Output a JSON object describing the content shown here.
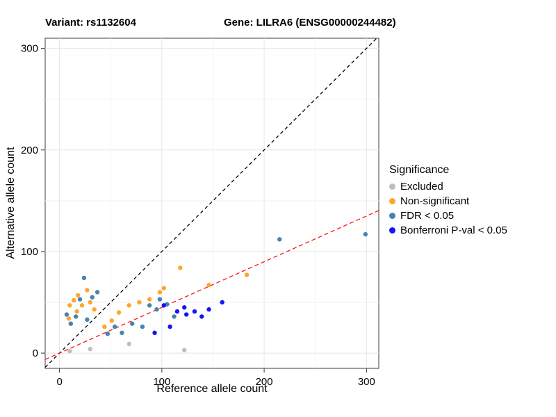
{
  "titles": {
    "variant": "Variant: rs1132604",
    "gene": "Gene: LILRA6 (ENSG00000244482)"
  },
  "axes": {
    "x_label": "Reference allele count",
    "y_label": "Alternative allele count"
  },
  "legend": {
    "title": "Significance",
    "items": [
      {
        "label": "Excluded",
        "color": "#BEBEBE"
      },
      {
        "label": "Non-significant",
        "color": "#FFA52C"
      },
      {
        "label": "FDR < 0.05",
        "color": "#4682B4"
      },
      {
        "label": "Bonferroni P-val < 0.05",
        "color": "#1414FF"
      }
    ]
  },
  "chart_data": {
    "type": "scatter",
    "title": "Variant: rs1132604 — Gene: LILRA6 (ENSG00000244482)",
    "xlabel": "Reference allele count",
    "ylabel": "Alternative allele count",
    "x_domain": [
      -14,
      312
    ],
    "y_domain": [
      -15,
      310
    ],
    "x_ticks": [
      0,
      100,
      200,
      300
    ],
    "y_ticks": [
      0,
      100,
      200,
      300
    ],
    "x_minor": [
      50,
      150,
      250
    ],
    "y_minor": [
      50,
      150,
      250
    ],
    "grid": true,
    "legend_position": "right",
    "series": [
      {
        "name": "Excluded",
        "key": "excluded",
        "color": "#BEBEBE",
        "points": [
          [
            10,
            2
          ],
          [
            30,
            4
          ],
          [
            68,
            9
          ],
          [
            122,
            3
          ]
        ]
      },
      {
        "name": "Non-significant",
        "key": "non-significant",
        "color": "#FFA52C",
        "points": [
          [
            9,
            34
          ],
          [
            10,
            47
          ],
          [
            14,
            52
          ],
          [
            17,
            41
          ],
          [
            18,
            57
          ],
          [
            22,
            47
          ],
          [
            27,
            62
          ],
          [
            30,
            50
          ],
          [
            34,
            43
          ],
          [
            44,
            26
          ],
          [
            51,
            32
          ],
          [
            58,
            40
          ],
          [
            68,
            47
          ],
          [
            78,
            50
          ],
          [
            88,
            53
          ],
          [
            98,
            60
          ],
          [
            102,
            64
          ],
          [
            118,
            84
          ],
          [
            146,
            67
          ],
          [
            183,
            77
          ]
        ]
      },
      {
        "name": "FDR < 0.05",
        "key": "fdr",
        "color": "#4682B4",
        "points": [
          [
            7,
            38
          ],
          [
            11,
            29
          ],
          [
            16,
            36
          ],
          [
            20,
            53
          ],
          [
            24,
            74
          ],
          [
            27,
            33
          ],
          [
            32,
            55
          ],
          [
            37,
            60
          ],
          [
            47,
            19
          ],
          [
            54,
            26
          ],
          [
            61,
            20
          ],
          [
            71,
            29
          ],
          [
            81,
            26
          ],
          [
            88,
            47
          ],
          [
            95,
            43
          ],
          [
            98,
            53
          ],
          [
            105,
            48
          ],
          [
            112,
            36
          ],
          [
            215,
            112
          ],
          [
            299,
            117
          ]
        ]
      },
      {
        "name": "Bonferroni P-val < 0.05",
        "key": "bonferroni",
        "color": "#1414FF",
        "points": [
          [
            93,
            20
          ],
          [
            102,
            47
          ],
          [
            108,
            26
          ],
          [
            115,
            41
          ],
          [
            122,
            45
          ],
          [
            124,
            38
          ],
          [
            132,
            41
          ],
          [
            139,
            36
          ],
          [
            146,
            43
          ],
          [
            159,
            50
          ]
        ]
      }
    ],
    "lines": [
      {
        "name": "identity",
        "slope": 1,
        "intercept": 0,
        "color": "#000000",
        "dash": "5,4"
      },
      {
        "name": "fit",
        "slope": 0.45,
        "intercept": 0,
        "color": "#FF1111",
        "dash": "6,4"
      }
    ]
  }
}
